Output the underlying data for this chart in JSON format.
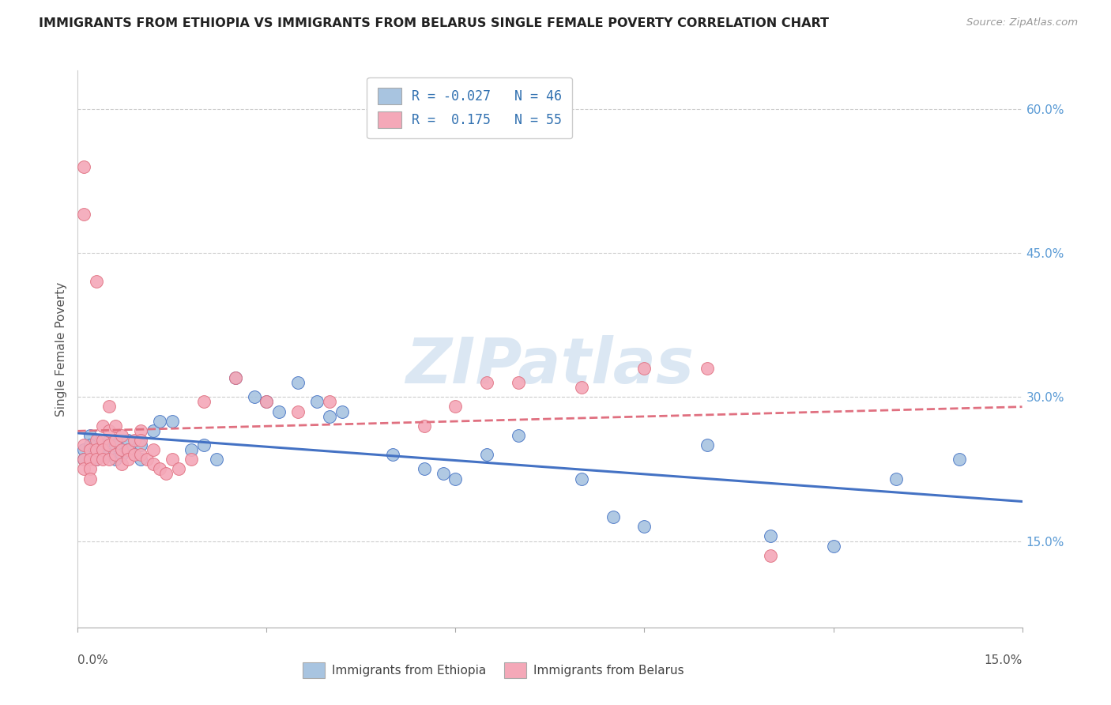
{
  "title": "IMMIGRANTS FROM ETHIOPIA VS IMMIGRANTS FROM BELARUS SINGLE FEMALE POVERTY CORRELATION CHART",
  "source": "Source: ZipAtlas.com",
  "ylabel": "Single Female Poverty",
  "yticks_right_vals": [
    0.15,
    0.3,
    0.45,
    0.6
  ],
  "xmin": 0.0,
  "xmax": 0.15,
  "ymin": 0.06,
  "ymax": 0.64,
  "legend_ethiopia": "Immigrants from Ethiopia",
  "legend_belarus": "Immigrants from Belarus",
  "R_ethiopia": -0.027,
  "N_ethiopia": 46,
  "R_belarus": 0.175,
  "N_belarus": 55,
  "color_ethiopia": "#a8c4e0",
  "color_belarus": "#f4a8b8",
  "line_ethiopia": "#4472c4",
  "line_belarus": "#e07080",
  "ethiopia_x": [
    0.001,
    0.001,
    0.002,
    0.002,
    0.003,
    0.003,
    0.004,
    0.004,
    0.005,
    0.005,
    0.006,
    0.006,
    0.007,
    0.008,
    0.008,
    0.009,
    0.01,
    0.01,
    0.012,
    0.013,
    0.015,
    0.018,
    0.02,
    0.022,
    0.025,
    0.028,
    0.03,
    0.032,
    0.035,
    0.038,
    0.04,
    0.042,
    0.05,
    0.055,
    0.058,
    0.06,
    0.065,
    0.07,
    0.08,
    0.085,
    0.09,
    0.1,
    0.11,
    0.12,
    0.13,
    0.14
  ],
  "ethiopia_y": [
    0.245,
    0.235,
    0.26,
    0.25,
    0.24,
    0.235,
    0.25,
    0.24,
    0.255,
    0.24,
    0.25,
    0.235,
    0.24,
    0.255,
    0.245,
    0.24,
    0.25,
    0.235,
    0.265,
    0.275,
    0.275,
    0.245,
    0.25,
    0.235,
    0.32,
    0.3,
    0.295,
    0.285,
    0.315,
    0.295,
    0.28,
    0.285,
    0.24,
    0.225,
    0.22,
    0.215,
    0.24,
    0.26,
    0.215,
    0.175,
    0.165,
    0.25,
    0.155,
    0.145,
    0.215,
    0.235
  ],
  "belarus_x": [
    0.001,
    0.001,
    0.001,
    0.001,
    0.001,
    0.002,
    0.002,
    0.002,
    0.002,
    0.003,
    0.003,
    0.003,
    0.003,
    0.004,
    0.004,
    0.004,
    0.004,
    0.005,
    0.005,
    0.005,
    0.005,
    0.006,
    0.006,
    0.006,
    0.007,
    0.007,
    0.007,
    0.008,
    0.008,
    0.009,
    0.009,
    0.01,
    0.01,
    0.01,
    0.011,
    0.012,
    0.012,
    0.013,
    0.014,
    0.015,
    0.016,
    0.018,
    0.02,
    0.025,
    0.03,
    0.035,
    0.04,
    0.055,
    0.06,
    0.065,
    0.07,
    0.08,
    0.09,
    0.1,
    0.11
  ],
  "belarus_y": [
    0.54,
    0.49,
    0.25,
    0.235,
    0.225,
    0.245,
    0.235,
    0.225,
    0.215,
    0.42,
    0.255,
    0.245,
    0.235,
    0.27,
    0.255,
    0.245,
    0.235,
    0.29,
    0.265,
    0.25,
    0.235,
    0.27,
    0.255,
    0.24,
    0.26,
    0.245,
    0.23,
    0.245,
    0.235,
    0.255,
    0.24,
    0.265,
    0.255,
    0.24,
    0.235,
    0.245,
    0.23,
    0.225,
    0.22,
    0.235,
    0.225,
    0.235,
    0.295,
    0.32,
    0.295,
    0.285,
    0.295,
    0.27,
    0.29,
    0.315,
    0.315,
    0.31,
    0.33,
    0.33,
    0.135
  ]
}
